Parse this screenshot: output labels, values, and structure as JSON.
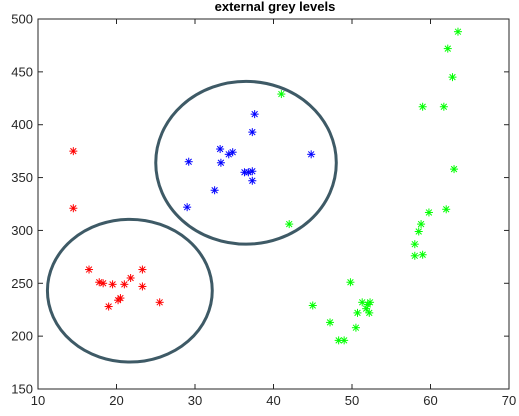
{
  "chart_data": {
    "type": "scatter",
    "title": "external grey levels",
    "xlabel": "",
    "ylabel": "",
    "xlim": [
      10,
      70
    ],
    "ylim": [
      150,
      500
    ],
    "xticks": [
      10,
      20,
      30,
      40,
      50,
      60,
      70
    ],
    "yticks": [
      150,
      200,
      250,
      300,
      350,
      400,
      450,
      500
    ],
    "grid": false,
    "marker": "asterisk",
    "series": [
      {
        "color": "#ff0000",
        "points": [
          [
            14.5,
            375
          ],
          [
            14.5,
            321
          ],
          [
            16.5,
            263
          ],
          [
            17.8,
            251
          ],
          [
            18.3,
            250
          ],
          [
            19.0,
            228
          ],
          [
            19.5,
            249
          ],
          [
            20.2,
            234
          ],
          [
            20.5,
            236
          ],
          [
            21.0,
            249
          ],
          [
            21.8,
            255
          ],
          [
            23.3,
            263
          ],
          [
            23.3,
            247
          ],
          [
            25.5,
            232
          ]
        ]
      },
      {
        "color": "#0000ff",
        "points": [
          [
            29.0,
            322
          ],
          [
            29.2,
            365
          ],
          [
            32.5,
            338
          ],
          [
            33.2,
            377
          ],
          [
            33.3,
            364
          ],
          [
            34.3,
            372
          ],
          [
            34.8,
            374
          ],
          [
            36.3,
            355
          ],
          [
            36.8,
            355
          ],
          [
            37.3,
            347
          ],
          [
            37.3,
            356
          ],
          [
            37.3,
            393
          ],
          [
            37.6,
            410
          ],
          [
            44.8,
            372
          ]
        ]
      },
      {
        "color": "#00ff00",
        "points": [
          [
            41.0,
            429
          ],
          [
            42.0,
            306
          ],
          [
            45.0,
            229
          ],
          [
            47.2,
            213
          ],
          [
            48.3,
            196
          ],
          [
            49.0,
            196
          ],
          [
            49.8,
            251
          ],
          [
            50.5,
            208
          ],
          [
            50.7,
            222
          ],
          [
            51.3,
            232
          ],
          [
            51.8,
            226
          ],
          [
            52.0,
            230
          ],
          [
            52.2,
            222
          ],
          [
            52.3,
            232
          ],
          [
            58.0,
            276
          ],
          [
            58.0,
            287
          ],
          [
            58.5,
            299
          ],
          [
            58.8,
            306
          ],
          [
            59.0,
            277
          ],
          [
            59.0,
            417
          ],
          [
            59.8,
            317
          ],
          [
            61.7,
            417
          ],
          [
            62.0,
            320
          ],
          [
            62.2,
            472
          ],
          [
            62.8,
            445
          ],
          [
            63.0,
            358
          ],
          [
            63.5,
            488
          ]
        ]
      }
    ],
    "ellipses": [
      {
        "cx": 21.7,
        "cy": 243,
        "rx": 10.5,
        "ry": 67.5,
        "color": "#3e5a66"
      },
      {
        "cx": 36.5,
        "cy": 364,
        "rx": 11.5,
        "ry": 77,
        "color": "#3e5a66"
      }
    ]
  }
}
